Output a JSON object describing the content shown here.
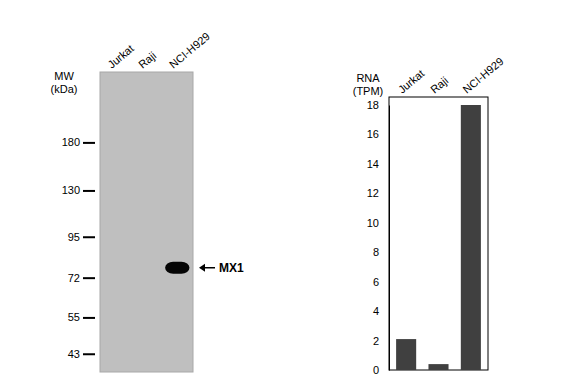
{
  "chart_data": [
    {
      "type": "blot",
      "categories": [
        "Jurkat",
        "Raji",
        "NCI-H929"
      ],
      "values": [
        null,
        null,
        77
      ],
      "annotation": "MX1",
      "ylabel": "MW\n(kDa)",
      "log": "y",
      "ylim": [
        38,
        290
      ],
      "yticks": [
        180,
        130,
        95,
        72,
        55,
        43
      ],
      "color": "#bfbfbf"
    },
    {
      "type": "bar",
      "categories": [
        "Jurkat",
        "Raji",
        "NCI-H929"
      ],
      "values": [
        2.1,
        0.4,
        18
      ],
      "ylabel": "RNA\n(TPM)",
      "ylim": [
        0,
        18
      ],
      "yticks": [
        0,
        2,
        4,
        6,
        8,
        10,
        12,
        14,
        16,
        18
      ],
      "color": "#404040"
    }
  ]
}
